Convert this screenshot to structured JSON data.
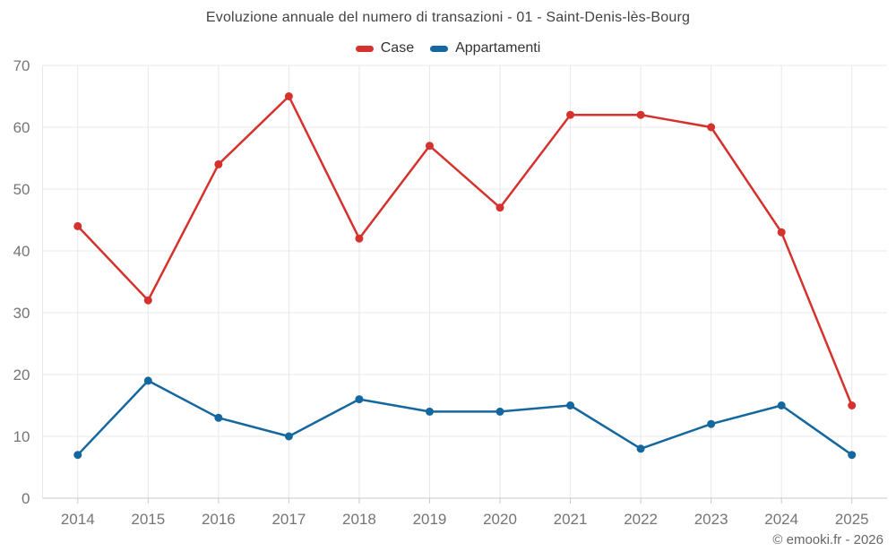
{
  "header": {
    "title": "Evoluzione annuale del numero di transazioni - 01 - Saint-Denis-lès-Bourg"
  },
  "footer": {
    "credit": "© emooki.fr - 2026"
  },
  "colors": {
    "case_series": "#d5312d",
    "appartamenti_series": "#15689f",
    "gridline": "#e8e8e8",
    "axis_line": "#c9c9c9",
    "tick_label": "#757575",
    "title_text": "#424242",
    "legend_text": "#333333",
    "credit_text": "#666666",
    "background": "#ffffff"
  },
  "chart_data": {
    "type": "line",
    "title": "Evoluzione annuale del numero di transazioni - 01 - Saint-Denis-lès-Bourg",
    "categories": [
      "2014",
      "2015",
      "2016",
      "2017",
      "2018",
      "2019",
      "2020",
      "2021",
      "2022",
      "2023",
      "2024",
      "2025"
    ],
    "series": [
      {
        "name": "Case",
        "color": "#d5312d",
        "values": [
          44,
          32,
          54,
          65,
          42,
          57,
          47,
          62,
          62,
          60,
          43,
          15
        ]
      },
      {
        "name": "Appartamenti",
        "color": "#15689f",
        "values": [
          7,
          19,
          13,
          10,
          16,
          14,
          14,
          15,
          8,
          12,
          15,
          7
        ]
      }
    ],
    "xlabel": "",
    "ylabel": "",
    "ylim": [
      0,
      70
    ],
    "yticks": [
      0,
      10,
      20,
      30,
      40,
      50,
      60,
      70
    ],
    "grid": true,
    "legend_position": "top",
    "marker_radius": 4.5,
    "line_width": 2.5
  }
}
